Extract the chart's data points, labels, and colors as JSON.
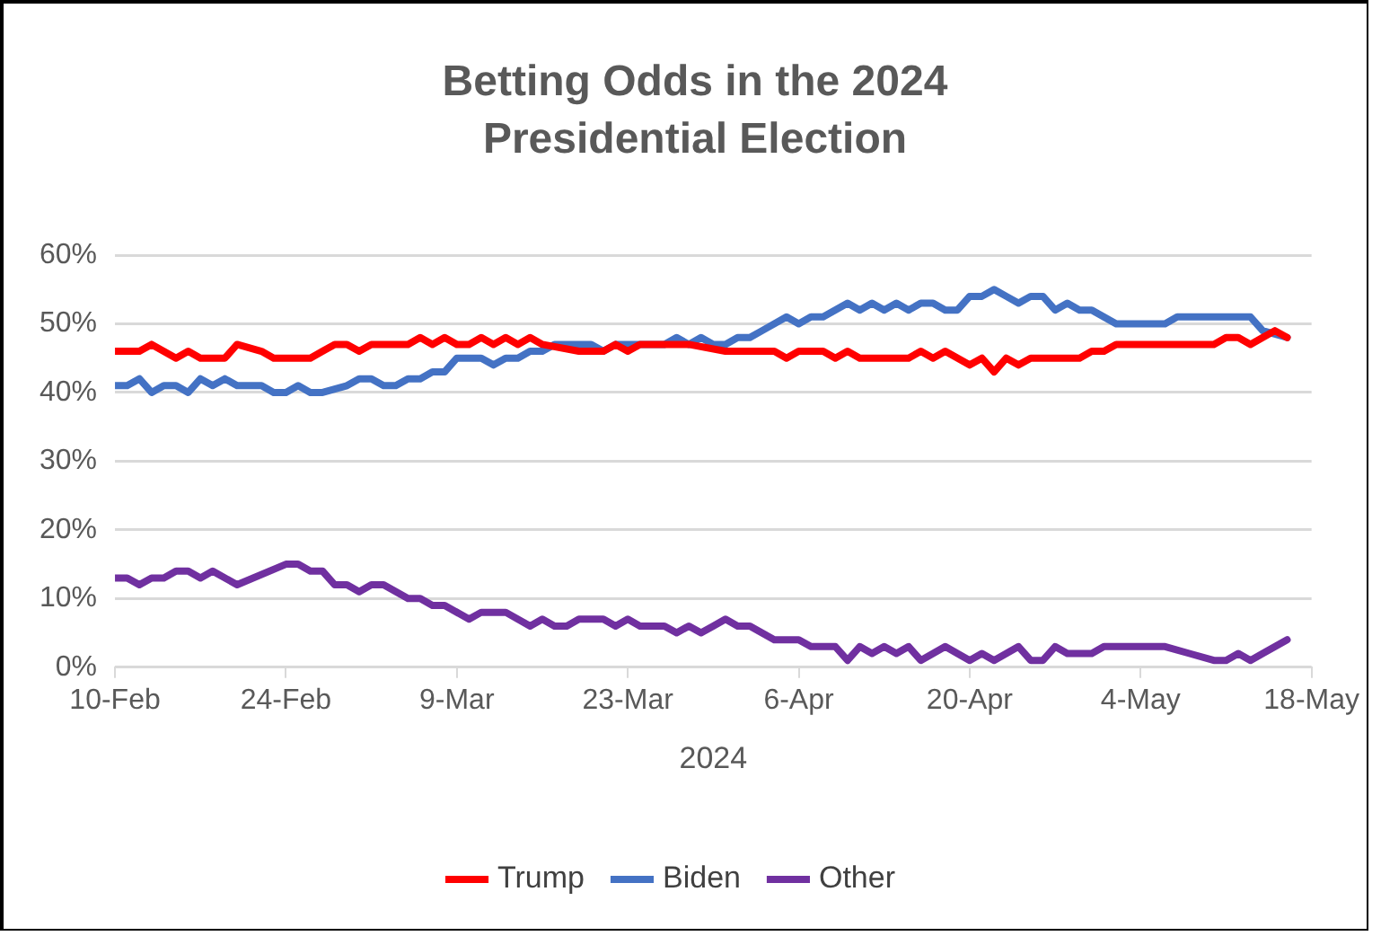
{
  "chart_data": {
    "type": "line",
    "title": "Betting Odds in the 2024 Presidential Election",
    "xlabel": "2024",
    "xlim": [
      "2024-02-10",
      "2024-05-18"
    ],
    "xticks": [
      {
        "value": "2024-02-10",
        "label": "10-Feb"
      },
      {
        "value": "2024-02-24",
        "label": "24-Feb"
      },
      {
        "value": "2024-03-09",
        "label": "9-Mar"
      },
      {
        "value": "2024-03-23",
        "label": "23-Mar"
      },
      {
        "value": "2024-04-06",
        "label": "6-Apr"
      },
      {
        "value": "2024-04-20",
        "label": "20-Apr"
      },
      {
        "value": "2024-05-04",
        "label": "4-May"
      },
      {
        "value": "2024-05-18",
        "label": "18-May"
      }
    ],
    "ylim": [
      0,
      60
    ],
    "yticks": [
      {
        "value": 0,
        "label": "0%"
      },
      {
        "value": 10,
        "label": "10%"
      },
      {
        "value": 20,
        "label": "20%"
      },
      {
        "value": 30,
        "label": "30%"
      },
      {
        "value": 40,
        "label": "40%"
      },
      {
        "value": 50,
        "label": "50%"
      },
      {
        "value": 60,
        "label": "60%"
      }
    ],
    "grid": "y",
    "legend": "bottom",
    "marker": "none",
    "line_style": "solid",
    "series": [
      {
        "name": "Trump",
        "color": "#ff0000",
        "x": [
          "2024-02-10",
          "2024-02-12",
          "2024-02-13",
          "2024-02-15",
          "2024-02-16",
          "2024-02-17",
          "2024-02-19",
          "2024-02-20",
          "2024-02-22",
          "2024-02-23",
          "2024-02-26",
          "2024-02-27",
          "2024-02-28",
          "2024-02-29",
          "2024-03-01",
          "2024-03-02",
          "2024-03-05",
          "2024-03-06",
          "2024-03-07",
          "2024-03-08",
          "2024-03-09",
          "2024-03-10",
          "2024-03-11",
          "2024-03-12",
          "2024-03-13",
          "2024-03-14",
          "2024-03-15",
          "2024-03-16",
          "2024-03-19",
          "2024-03-21",
          "2024-03-22",
          "2024-03-23",
          "2024-03-24",
          "2024-03-28",
          "2024-03-31",
          "2024-04-04",
          "2024-04-05",
          "2024-04-06",
          "2024-04-08",
          "2024-04-09",
          "2024-04-10",
          "2024-04-11",
          "2024-04-15",
          "2024-04-16",
          "2024-04-17",
          "2024-04-18",
          "2024-04-20",
          "2024-04-21",
          "2024-04-22",
          "2024-04-23",
          "2024-04-24",
          "2024-04-25",
          "2024-04-29",
          "2024-04-30",
          "2024-05-01",
          "2024-05-02",
          "2024-05-10",
          "2024-05-11",
          "2024-05-12",
          "2024-05-13",
          "2024-05-14",
          "2024-05-15",
          "2024-05-16"
        ],
        "values": [
          46,
          46,
          47,
          45,
          46,
          45,
          45,
          47,
          46,
          45,
          45,
          46,
          47,
          47,
          46,
          47,
          47,
          48,
          47,
          48,
          47,
          47,
          48,
          47,
          48,
          47,
          48,
          47,
          46,
          46,
          47,
          46,
          47,
          47,
          46,
          46,
          45,
          46,
          46,
          45,
          46,
          45,
          45,
          46,
          45,
          46,
          44,
          45,
          43,
          45,
          44,
          45,
          45,
          46,
          46,
          47,
          47,
          48,
          48,
          47,
          48,
          49,
          48
        ]
      },
      {
        "name": "Biden",
        "color": "#4472c4",
        "x": [
          "2024-02-10",
          "2024-02-11",
          "2024-02-12",
          "2024-02-13",
          "2024-02-14",
          "2024-02-15",
          "2024-02-16",
          "2024-02-17",
          "2024-02-18",
          "2024-02-19",
          "2024-02-20",
          "2024-02-22",
          "2024-02-23",
          "2024-02-24",
          "2024-02-25",
          "2024-02-26",
          "2024-02-27",
          "2024-02-29",
          "2024-03-01",
          "2024-03-02",
          "2024-03-03",
          "2024-03-04",
          "2024-03-05",
          "2024-03-06",
          "2024-03-07",
          "2024-03-08",
          "2024-03-09",
          "2024-03-11",
          "2024-03-12",
          "2024-03-13",
          "2024-03-14",
          "2024-03-15",
          "2024-03-16",
          "2024-03-17",
          "2024-03-20",
          "2024-03-21",
          "2024-03-22",
          "2024-03-26",
          "2024-03-27",
          "2024-03-28",
          "2024-03-29",
          "2024-03-30",
          "2024-03-31",
          "2024-04-01",
          "2024-04-02",
          "2024-04-03",
          "2024-04-05",
          "2024-04-06",
          "2024-04-07",
          "2024-04-08",
          "2024-04-10",
          "2024-04-11",
          "2024-04-12",
          "2024-04-13",
          "2024-04-14",
          "2024-04-15",
          "2024-04-16",
          "2024-04-17",
          "2024-04-18",
          "2024-04-19",
          "2024-04-20",
          "2024-04-21",
          "2024-04-22",
          "2024-04-23",
          "2024-04-24",
          "2024-04-25",
          "2024-04-26",
          "2024-04-27",
          "2024-04-28",
          "2024-04-29",
          "2024-04-30",
          "2024-05-02",
          "2024-05-06",
          "2024-05-07",
          "2024-05-13",
          "2024-05-14",
          "2024-05-16"
        ],
        "values": [
          41,
          41,
          42,
          40,
          41,
          41,
          40,
          42,
          41,
          42,
          41,
          41,
          40,
          40,
          41,
          40,
          40,
          41,
          42,
          42,
          41,
          41,
          42,
          42,
          43,
          43,
          45,
          45,
          44,
          45,
          45,
          46,
          46,
          47,
          47,
          46,
          47,
          47,
          48,
          47,
          48,
          47,
          47,
          48,
          48,
          49,
          51,
          50,
          51,
          51,
          53,
          52,
          53,
          52,
          53,
          52,
          53,
          53,
          52,
          52,
          54,
          54,
          55,
          54,
          53,
          54,
          54,
          52,
          53,
          52,
          52,
          50,
          50,
          51,
          51,
          49,
          48
        ]
      },
      {
        "name": "Other",
        "color": "#7030a0",
        "x": [
          "2024-02-10",
          "2024-02-11",
          "2024-02-12",
          "2024-02-13",
          "2024-02-14",
          "2024-02-15",
          "2024-02-16",
          "2024-02-17",
          "2024-02-18",
          "2024-02-20",
          "2024-02-24",
          "2024-02-25",
          "2024-02-26",
          "2024-02-27",
          "2024-02-28",
          "2024-02-29",
          "2024-03-01",
          "2024-03-02",
          "2024-03-03",
          "2024-03-05",
          "2024-03-06",
          "2024-03-07",
          "2024-03-08",
          "2024-03-10",
          "2024-03-11",
          "2024-03-13",
          "2024-03-15",
          "2024-03-16",
          "2024-03-17",
          "2024-03-18",
          "2024-03-19",
          "2024-03-21",
          "2024-03-22",
          "2024-03-23",
          "2024-03-24",
          "2024-03-26",
          "2024-03-27",
          "2024-03-28",
          "2024-03-29",
          "2024-03-30",
          "2024-03-31",
          "2024-04-01",
          "2024-04-02",
          "2024-04-04",
          "2024-04-06",
          "2024-04-07",
          "2024-04-09",
          "2024-04-10",
          "2024-04-11",
          "2024-04-12",
          "2024-04-13",
          "2024-04-14",
          "2024-04-15",
          "2024-04-16",
          "2024-04-17",
          "2024-04-18",
          "2024-04-19",
          "2024-04-20",
          "2024-04-21",
          "2024-04-22",
          "2024-04-23",
          "2024-04-24",
          "2024-04-25",
          "2024-04-26",
          "2024-04-27",
          "2024-04-28",
          "2024-04-30",
          "2024-05-01",
          "2024-05-06",
          "2024-05-08",
          "2024-05-10",
          "2024-05-11",
          "2024-05-12",
          "2024-05-13",
          "2024-05-14",
          "2024-05-16"
        ],
        "values": [
          13,
          13,
          12,
          13,
          13,
          14,
          14,
          13,
          14,
          12,
          15,
          15,
          14,
          14,
          12,
          12,
          11,
          12,
          12,
          10,
          10,
          9,
          9,
          7,
          8,
          8,
          6,
          7,
          6,
          6,
          7,
          7,
          6,
          7,
          6,
          6,
          5,
          6,
          5,
          6,
          7,
          6,
          6,
          4,
          4,
          3,
          3,
          1,
          3,
          2,
          3,
          2,
          3,
          1,
          2,
          3,
          2,
          1,
          2,
          1,
          2,
          3,
          1,
          1,
          3,
          2,
          2,
          3,
          3,
          2,
          1,
          1,
          2,
          1,
          2,
          4
        ]
      }
    ]
  }
}
